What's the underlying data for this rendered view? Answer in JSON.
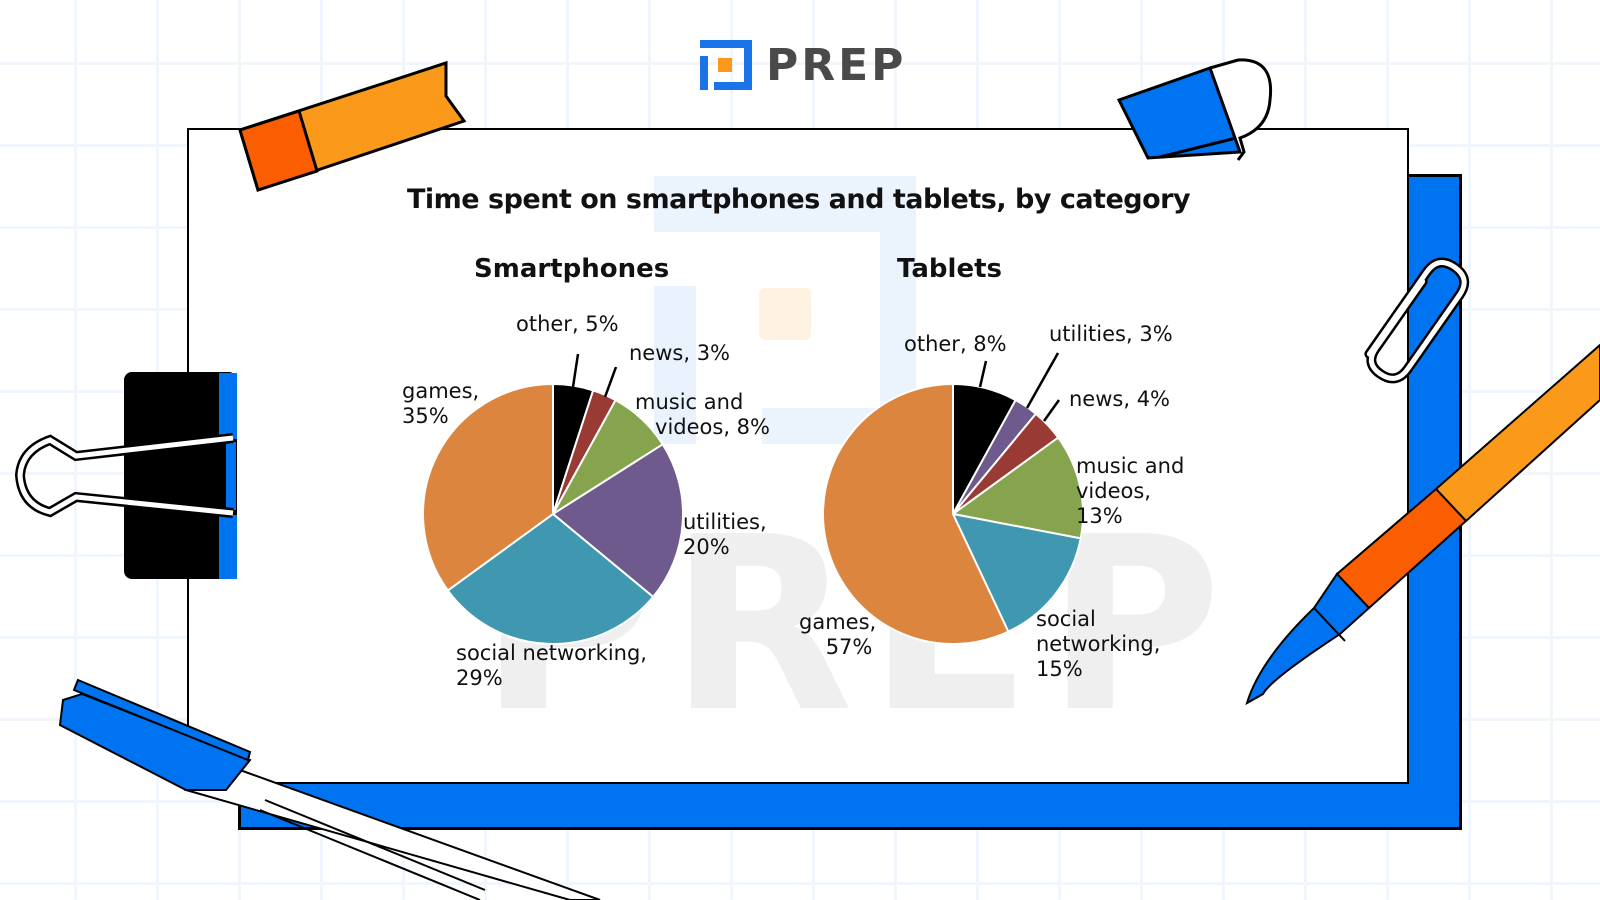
{
  "brand": {
    "name": "PREP",
    "primary_color": "#0073f0",
    "accent_color": "#fb9a1a",
    "text_color": "#4a4a4a"
  },
  "chart_data": [
    {
      "type": "pie",
      "title": "Time spent on smartphones and tablets, by category",
      "subtitle": "Smartphones",
      "categories": [
        "other",
        "news",
        "music and videos",
        "utilities",
        "social networking",
        "games"
      ],
      "values": [
        5,
        3,
        8,
        20,
        29,
        35
      ],
      "unit": "%",
      "colors": [
        "#000000",
        "#9a3a35",
        "#86a44d",
        "#6f5a8e",
        "#3f97b0",
        "#dc853f"
      ],
      "labels": [
        "other, 5%",
        "news, 3%",
        "music and\n   videos, 8%",
        "utilities,\n20%",
        "social networking,\n29%",
        "games,\n35%"
      ]
    },
    {
      "type": "pie",
      "title": "Time spent on smartphones and tablets, by category",
      "subtitle": "Tablets",
      "categories": [
        "other",
        "utilities",
        "news",
        "music and videos",
        "social networking",
        "games"
      ],
      "values": [
        8,
        3,
        4,
        13,
        15,
        57
      ],
      "unit": "%",
      "colors": [
        "#000000",
        "#6f5a8e",
        "#9a3a35",
        "#86a44d",
        "#3f97b0",
        "#dc853f"
      ],
      "labels": [
        "other, 8%",
        "utilities, 3%",
        "news, 4%",
        "music and\nvideos,\n13%",
        "social\nnetworking,\n15%",
        "games,\n    57%"
      ]
    }
  ],
  "page": {
    "title": "Time spent on smartphones and tablets, by category",
    "left_pie_title": "Smartphones",
    "right_pie_title": "Tablets"
  }
}
